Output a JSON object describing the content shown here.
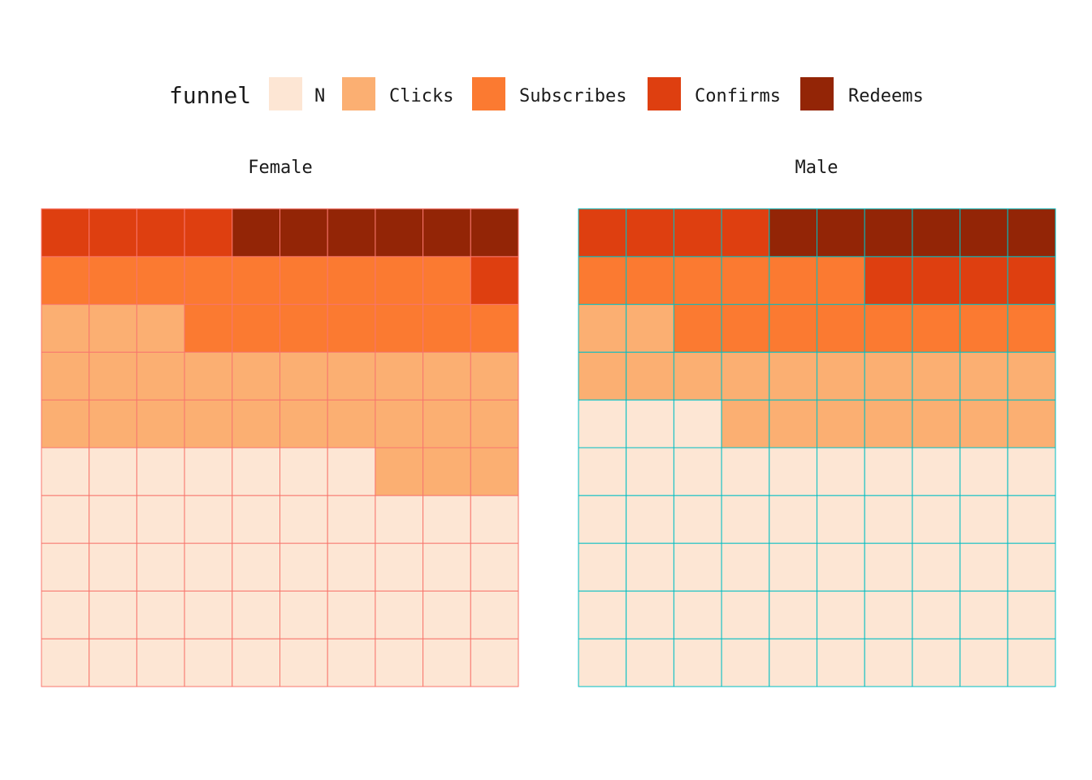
{
  "chart_data": {
    "type": "waffle",
    "legend": {
      "title": "funnel",
      "placement": "top",
      "entries": [
        {
          "key": "N",
          "label": "N",
          "color": "#FDE6D4"
        },
        {
          "key": "Clicks",
          "label": "Clicks",
          "color": "#FBAF72"
        },
        {
          "key": "Subscribes",
          "label": "Subscribes",
          "color": "#FB7A31"
        },
        {
          "key": "Confirms",
          "label": "Confirms",
          "color": "#DE3F10"
        },
        {
          "key": "Redeems",
          "label": "Redeems",
          "color": "#932506"
        }
      ]
    },
    "grid": {
      "rows": 10,
      "cols": 10,
      "fill_order": "bottom-left, row by row, upward"
    },
    "facets": [
      {
        "title": "Female",
        "border_color": "#F8766D",
        "counts": {
          "N": 47,
          "Clicks": 26,
          "Subscribes": 16,
          "Confirms": 5,
          "Redeems": 6
        }
      },
      {
        "title": "Male",
        "border_color": "#00BFC4",
        "counts": {
          "N": 53,
          "Clicks": 19,
          "Subscribes": 14,
          "Confirms": 8,
          "Redeems": 6
        }
      }
    ]
  }
}
